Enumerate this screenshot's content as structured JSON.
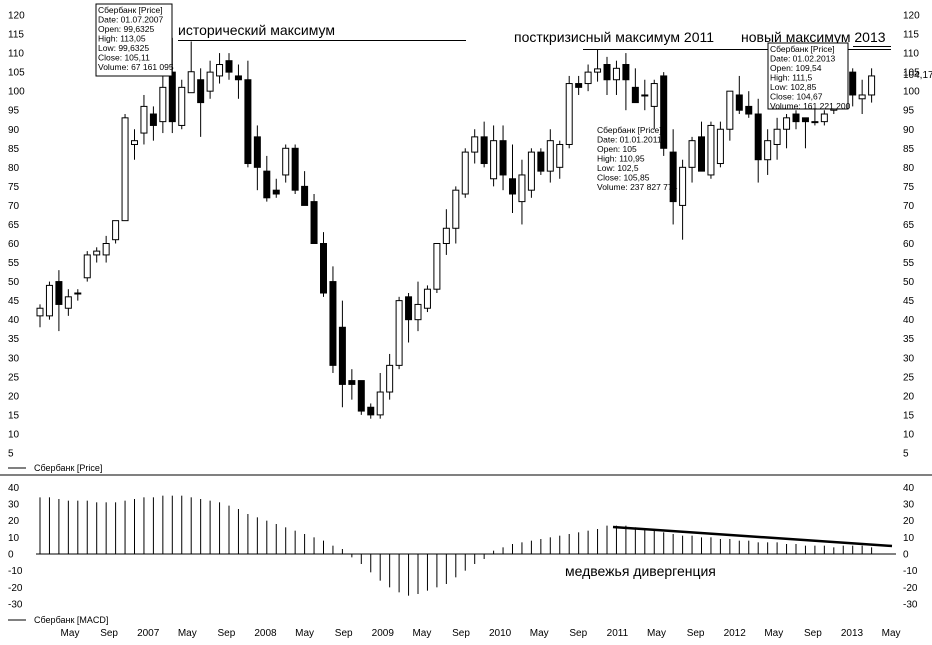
{
  "chart_data": [
    {
      "type": "candlestick",
      "series_label": "Сбербанк [Price]",
      "ylim": [
        0,
        120
      ],
      "yticks": [
        5,
        10,
        15,
        20,
        25,
        30,
        35,
        40,
        45,
        50,
        55,
        60,
        65,
        70,
        75,
        80,
        85,
        90,
        95,
        100,
        105,
        110,
        115,
        120
      ],
      "last_price_label": "104,17",
      "candles": [
        {
          "o": 41,
          "h": 44,
          "l": 38,
          "c": 43
        },
        {
          "o": 41,
          "h": 50,
          "l": 40,
          "c": 49
        },
        {
          "o": 50,
          "h": 53,
          "l": 37,
          "c": 44
        },
        {
          "o": 43,
          "h": 48,
          "l": 41,
          "c": 46
        },
        {
          "o": 47,
          "h": 48,
          "l": 45,
          "c": 47
        },
        {
          "o": 51,
          "h": 58,
          "l": 50,
          "c": 57
        },
        {
          "o": 57,
          "h": 59,
          "l": 55,
          "c": 58
        },
        {
          "o": 57,
          "h": 62,
          "l": 55,
          "c": 60
        },
        {
          "o": 61,
          "h": 66,
          "l": 60,
          "c": 66
        },
        {
          "o": 66,
          "h": 94,
          "l": 66,
          "c": 93
        },
        {
          "o": 86,
          "h": 90,
          "l": 82,
          "c": 87
        },
        {
          "o": 89,
          "h": 99,
          "l": 86,
          "c": 96
        },
        {
          "o": 94,
          "h": 96,
          "l": 87,
          "c": 91
        },
        {
          "o": 92,
          "h": 105,
          "l": 89,
          "c": 101
        },
        {
          "o": 105,
          "h": 114,
          "l": 89,
          "c": 92
        },
        {
          "o": 91,
          "h": 103,
          "l": 90,
          "c": 101
        },
        {
          "o": 99.6,
          "h": 113.05,
          "l": 99.6,
          "c": 105.1
        },
        {
          "o": 103,
          "h": 106,
          "l": 88,
          "c": 97
        },
        {
          "o": 100,
          "h": 108,
          "l": 98,
          "c": 105
        },
        {
          "o": 104,
          "h": 110,
          "l": 102,
          "c": 107
        },
        {
          "o": 108,
          "h": 110,
          "l": 103,
          "c": 105
        },
        {
          "o": 104,
          "h": 107,
          "l": 98,
          "c": 103
        },
        {
          "o": 103,
          "h": 108,
          "l": 80,
          "c": 81
        },
        {
          "o": 88,
          "h": 91,
          "l": 74,
          "c": 80
        },
        {
          "o": 79,
          "h": 83,
          "l": 71,
          "c": 72
        },
        {
          "o": 74,
          "h": 77,
          "l": 72,
          "c": 73
        },
        {
          "o": 78,
          "h": 86,
          "l": 76,
          "c": 85
        },
        {
          "o": 85,
          "h": 86,
          "l": 73,
          "c": 74
        },
        {
          "o": 75,
          "h": 79,
          "l": 70,
          "c": 70
        },
        {
          "o": 71,
          "h": 73,
          "l": 60,
          "c": 60
        },
        {
          "o": 60,
          "h": 63,
          "l": 46,
          "c": 47
        },
        {
          "o": 50,
          "h": 54,
          "l": 26,
          "c": 28
        },
        {
          "o": 38,
          "h": 45,
          "l": 17,
          "c": 23
        },
        {
          "o": 24,
          "h": 27,
          "l": 19,
          "c": 23
        },
        {
          "o": 24,
          "h": 24,
          "l": 15,
          "c": 16
        },
        {
          "o": 17,
          "h": 18,
          "l": 14,
          "c": 15
        },
        {
          "o": 15,
          "h": 26,
          "l": 14,
          "c": 21
        },
        {
          "o": 21,
          "h": 31,
          "l": 19,
          "c": 28
        },
        {
          "o": 28,
          "h": 46,
          "l": 27,
          "c": 45
        },
        {
          "o": 46,
          "h": 47,
          "l": 34,
          "c": 40
        },
        {
          "o": 40,
          "h": 50,
          "l": 37,
          "c": 44
        },
        {
          "o": 43,
          "h": 49,
          "l": 42,
          "c": 48
        },
        {
          "o": 48,
          "h": 60,
          "l": 47,
          "c": 60
        },
        {
          "o": 60,
          "h": 69,
          "l": 57,
          "c": 64
        },
        {
          "o": 64,
          "h": 75,
          "l": 60,
          "c": 74
        },
        {
          "o": 73,
          "h": 85,
          "l": 72,
          "c": 84
        },
        {
          "o": 84,
          "h": 90,
          "l": 81,
          "c": 88
        },
        {
          "o": 88,
          "h": 92,
          "l": 80,
          "c": 81
        },
        {
          "o": 77,
          "h": 91,
          "l": 75,
          "c": 87
        },
        {
          "o": 87,
          "h": 91,
          "l": 74,
          "c": 78
        },
        {
          "o": 77,
          "h": 86,
          "l": 68,
          "c": 73
        },
        {
          "o": 71,
          "h": 82,
          "l": 65,
          "c": 78
        },
        {
          "o": 74,
          "h": 85,
          "l": 72,
          "c": 84
        },
        {
          "o": 84,
          "h": 85,
          "l": 78,
          "c": 79
        },
        {
          "o": 79,
          "h": 90,
          "l": 76,
          "c": 87
        },
        {
          "o": 80,
          "h": 87,
          "l": 77,
          "c": 86
        },
        {
          "o": 86,
          "h": 104,
          "l": 85,
          "c": 102
        },
        {
          "o": 102,
          "h": 104,
          "l": 99,
          "c": 101
        },
        {
          "o": 102,
          "h": 107,
          "l": 100,
          "c": 105
        },
        {
          "o": 105,
          "h": 110.95,
          "l": 102.5,
          "c": 105.85
        },
        {
          "o": 107,
          "h": 109,
          "l": 99,
          "c": 103
        },
        {
          "o": 103,
          "h": 108,
          "l": 99,
          "c": 106
        },
        {
          "o": 107,
          "h": 110,
          "l": 95,
          "c": 103
        },
        {
          "o": 101,
          "h": 106,
          "l": 97,
          "c": 97
        },
        {
          "o": 99,
          "h": 103,
          "l": 95,
          "c": 99
        },
        {
          "o": 96,
          "h": 103,
          "l": 90,
          "c": 102
        },
        {
          "o": 104,
          "h": 105,
          "l": 83,
          "c": 85
        },
        {
          "o": 84,
          "h": 90,
          "l": 65,
          "c": 71
        },
        {
          "o": 70,
          "h": 82,
          "l": 61,
          "c": 80
        },
        {
          "o": 80,
          "h": 88,
          "l": 76,
          "c": 87
        },
        {
          "o": 88,
          "h": 92,
          "l": 79,
          "c": 79
        },
        {
          "o": 78,
          "h": 92,
          "l": 77,
          "c": 91
        },
        {
          "o": 81,
          "h": 92,
          "l": 80,
          "c": 90
        },
        {
          "o": 90,
          "h": 100,
          "l": 87,
          "c": 100
        },
        {
          "o": 99,
          "h": 104,
          "l": 94,
          "c": 95
        },
        {
          "o": 96,
          "h": 100,
          "l": 93,
          "c": 94
        },
        {
          "o": 94,
          "h": 98,
          "l": 76,
          "c": 82
        },
        {
          "o": 82,
          "h": 90,
          "l": 78,
          "c": 87
        },
        {
          "o": 86,
          "h": 93,
          "l": 82,
          "c": 90
        },
        {
          "o": 90,
          "h": 94,
          "l": 85,
          "c": 93
        },
        {
          "o": 94,
          "h": 95,
          "l": 90,
          "c": 92
        },
        {
          "o": 93,
          "h": 93,
          "l": 85,
          "c": 92
        },
        {
          "o": 92,
          "h": 96,
          "l": 91,
          "c": 92
        },
        {
          "o": 92,
          "h": 95,
          "l": 91,
          "c": 94
        },
        {
          "o": 95,
          "h": 111,
          "l": 94,
          "c": 110
        },
        {
          "o": 109.54,
          "h": 111.5,
          "l": 102.85,
          "c": 104.67
        },
        {
          "o": 105,
          "h": 106,
          "l": 96,
          "c": 99
        },
        {
          "o": 98,
          "h": 103,
          "l": 94,
          "c": 99
        },
        {
          "o": 99,
          "h": 106,
          "l": 97,
          "c": 104
        }
      ],
      "tooltips": [
        {
          "lines": [
            "Сбербанк [Price]",
            "Date: 01.07.2007",
            "Open: 99,6325",
            "High: 113,05",
            "Low: 99,6325",
            "Close: 105,11",
            "Volume: 67 161 095"
          ]
        },
        {
          "lines": [
            "Сбербанк [Price]",
            "Date: 01.01.2011",
            "Open: 105",
            "High: 110,95",
            "Low: 102,5",
            "Close: 105,85",
            "Volume: 237 827 774"
          ]
        },
        {
          "lines": [
            "Сбербанк [Price]",
            "Date: 01.02.2013",
            "Open: 109,54",
            "High: 111,5",
            "Low: 102,85",
            "Close: 104,67",
            "Volume: 161 221 200"
          ]
        }
      ],
      "annotations": [
        "исторический максимум",
        "посткризисный максимум 2011",
        "новый максимум 2013"
      ]
    },
    {
      "type": "histogram",
      "series_label": "Сбербанк [MACD]",
      "ylim": [
        -35,
        45
      ],
      "yticks": [
        -30,
        -20,
        -10,
        0,
        10,
        20,
        30,
        40
      ],
      "values": [
        34,
        34,
        33,
        32,
        32,
        32,
        31,
        31,
        31,
        32,
        33,
        34,
        34,
        35,
        35,
        35,
        34,
        33,
        32,
        31,
        29,
        27,
        24,
        22,
        20,
        18,
        16,
        14,
        12,
        10,
        8,
        5,
        3,
        -2,
        -6,
        -11,
        -16,
        -20,
        -23,
        -25,
        -24,
        -22,
        -20,
        -18,
        -14,
        -10,
        -6,
        -3,
        2,
        4,
        6,
        7,
        8,
        9,
        10,
        11,
        12,
        13,
        14,
        15,
        17,
        17,
        17,
        16,
        15,
        14,
        13,
        12,
        11,
        11,
        10,
        10,
        9,
        9,
        8,
        8,
        7,
        7,
        7,
        6,
        6,
        5,
        5,
        5,
        4,
        5,
        5,
        5,
        4
      ],
      "annotation": "медвежья дивергенция"
    }
  ],
  "x_axis_labels": [
    "May",
    "Sep",
    "2007",
    "May",
    "Sep",
    "2008",
    "May",
    "Sep",
    "2009",
    "May",
    "Sep",
    "2010",
    "May",
    "Sep",
    "2011",
    "May",
    "Sep",
    "2012",
    "May",
    "Sep",
    "2013",
    "May"
  ]
}
